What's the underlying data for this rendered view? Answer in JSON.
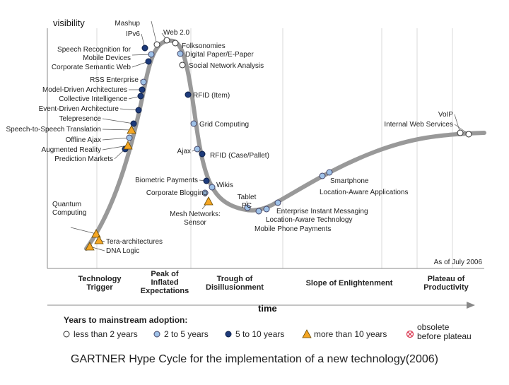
{
  "y_axis_label": "visibility",
  "x_axis_label": "time",
  "as_of": "As of July 2006",
  "phases": [
    {
      "lines": [
        "Technology",
        "Trigger"
      ]
    },
    {
      "lines": [
        "Peak of",
        "Inflated",
        "Expectations"
      ]
    },
    {
      "lines": [
        "Trough of",
        "Disillusionment"
      ]
    },
    {
      "lines": [
        "Slope of Enlightenment"
      ]
    },
    {
      "lines": [
        "Plateau of",
        "Productivity"
      ]
    }
  ],
  "top_labels": [
    "Mashup",
    "IPv6",
    "Web 2.0"
  ],
  "technologies": [
    {
      "name": "Quantum Computing",
      "lines": [
        "Quantum",
        "Computing"
      ],
      "category": "10+"
    },
    {
      "name": "Tera-architectures",
      "category": "10+"
    },
    {
      "name": "DNA Logic",
      "category": "10+"
    },
    {
      "name": "Prediction Markets",
      "category": "5-10"
    },
    {
      "name": "Augmented Reality",
      "category": "10+"
    },
    {
      "name": "Offline Ajax",
      "category": "2-5"
    },
    {
      "name": "Speech-to-Speech Translation",
      "category": "10+"
    },
    {
      "name": "Telepresence",
      "category": "5-10"
    },
    {
      "name": "Event-Driven Architecture",
      "category": "5-10"
    },
    {
      "name": "Collective Intelligence",
      "category": "5-10"
    },
    {
      "name": "Model-Driven Architectures",
      "category": "5-10"
    },
    {
      "name": "RSS Enterprise",
      "category": "2-5"
    },
    {
      "name": "Corporate Semantic Web",
      "category": "5-10"
    },
    {
      "name": "Speech Recognition for Mobile Devices",
      "lines": [
        "Speech Recognition for",
        "Mobile Devices"
      ],
      "category": "2-5"
    },
    {
      "name": "IPv6",
      "category": "5-10"
    },
    {
      "name": "Mashup",
      "category": "<2"
    },
    {
      "name": "Web 2.0",
      "category": "<2"
    },
    {
      "name": "Folksonomies",
      "category": "<2"
    },
    {
      "name": "Digital Paper/E-Paper",
      "category": "2-5"
    },
    {
      "name": "Social Network Analysis",
      "category": "<2"
    },
    {
      "name": "RFID (Item)",
      "category": "5-10"
    },
    {
      "name": "Grid Computing",
      "category": "2-5"
    },
    {
      "name": "Ajax",
      "category": "2-5"
    },
    {
      "name": "RFID (Case/Pallet)",
      "category": "5-10"
    },
    {
      "name": "Biometric Payments",
      "category": "5-10"
    },
    {
      "name": "Corporate Blogging",
      "category": "2-5"
    },
    {
      "name": "Wikis",
      "category": "2-5"
    },
    {
      "name": "Mesh Networks: Sensor",
      "lines": [
        "Mesh Networks:",
        "Sensor"
      ],
      "category": "10+"
    },
    {
      "name": "Tablet PC",
      "lines": [
        "Tablet",
        "PC"
      ],
      "category": "2-5"
    },
    {
      "name": "Mobile Phone Payments",
      "category": "2-5"
    },
    {
      "name": "Location-Aware Technology",
      "category": "2-5"
    },
    {
      "name": "Enterprise Instant Messaging",
      "category": "2-5"
    },
    {
      "name": "Smartphone",
      "category": "2-5"
    },
    {
      "name": "Location-Aware Applications",
      "category": "2-5"
    },
    {
      "name": "VoIP",
      "category": "<2"
    },
    {
      "name": "Internal Web Services",
      "category": "<2"
    }
  ],
  "legend": {
    "title": "Years to mainstream adoption:",
    "items": [
      {
        "label": "less than 2 years",
        "symbol": "hollow-circle"
      },
      {
        "label": "2 to 5 years",
        "symbol": "light-blue-circle"
      },
      {
        "label": "5 to 10 years",
        "symbol": "dark-blue-circle"
      },
      {
        "label": "more than 10 years",
        "symbol": "orange-triangle"
      },
      {
        "label": "obsolete before plateau",
        "lines": [
          "obsolete",
          "before plateau"
        ],
        "symbol": "crossed-circle"
      }
    ]
  },
  "caption": "GARTNER Hype Cycle for the implementation of a new technology(2006)",
  "colors": {
    "curve": "#999999",
    "dark_blue": "#1d3a7a",
    "light_blue": "#9fc2e8",
    "orange": "#f5a623",
    "obsolete": "#d9304a"
  }
}
